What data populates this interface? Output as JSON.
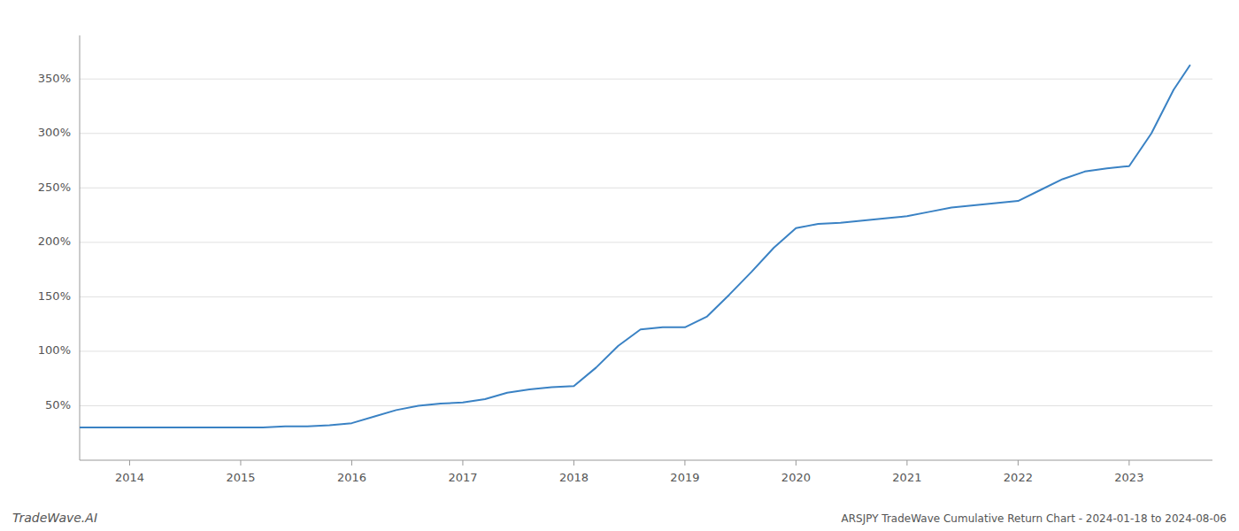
{
  "chart_data": {
    "type": "line",
    "title": "ARSJPY TradeWave Cumulative Return Chart - 2024-01-18 to 2024-08-06",
    "annotations": [
      "TradeWave.AI"
    ],
    "color": "#3a82c4",
    "x": [
      2013.55,
      2014.0,
      2014.2,
      2014.4,
      2014.6,
      2014.8,
      2015.0,
      2015.2,
      2015.4,
      2015.6,
      2015.8,
      2016.0,
      2016.2,
      2016.4,
      2016.6,
      2016.8,
      2017.0,
      2017.2,
      2017.4,
      2017.6,
      2017.8,
      2018.0,
      2018.2,
      2018.4,
      2018.6,
      2018.8,
      2019.0,
      2019.2,
      2019.4,
      2019.6,
      2019.8,
      2020.0,
      2020.2,
      2020.4,
      2020.6,
      2020.8,
      2021.0,
      2021.2,
      2021.4,
      2021.6,
      2021.8,
      2022.0,
      2022.2,
      2022.4,
      2022.6,
      2022.8,
      2023.0,
      2023.2,
      2023.4,
      2023.55
    ],
    "values": [
      30,
      30,
      30,
      30,
      30,
      30,
      30,
      30,
      31,
      31,
      32,
      34,
      40,
      46,
      50,
      52,
      53,
      56,
      62,
      65,
      67,
      68,
      85,
      105,
      120,
      122,
      122,
      132,
      152,
      173,
      195,
      213,
      217,
      218,
      220,
      222,
      224,
      228,
      232,
      234,
      236,
      238,
      248,
      258,
      265,
      268,
      270,
      300,
      340,
      363
    ],
    "xlim": [
      2013.55,
      2023.75
    ],
    "xticks": [
      2014,
      2015,
      2016,
      2017,
      2018,
      2019,
      2020,
      2021,
      2022,
      2023
    ],
    "ylim": [
      0,
      390
    ],
    "yticks": [
      {
        "value": 50,
        "label": "50%"
      },
      {
        "value": 100,
        "label": "100%"
      },
      {
        "value": 150,
        "label": "150%"
      },
      {
        "value": 200,
        "label": "200%"
      },
      {
        "value": 250,
        "label": "250%"
      },
      {
        "value": 300,
        "label": "300%"
      },
      {
        "value": 350,
        "label": "350%"
      }
    ],
    "grid": true
  }
}
